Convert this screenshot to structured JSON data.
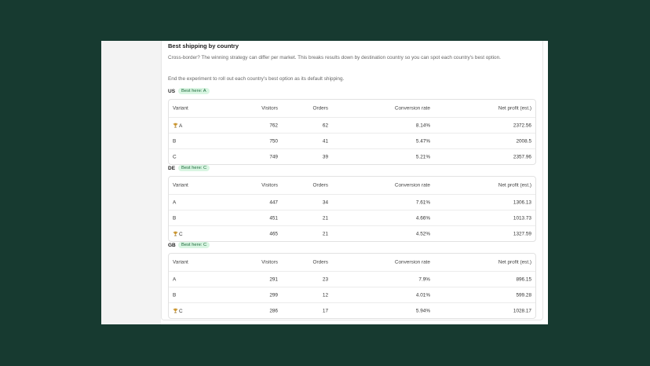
{
  "header": {
    "title": "Best shipping by country"
  },
  "paragraphs": [
    "Cross-border? The winning strategy can differ per market. This breaks results down by destination country so you can spot each country's best option.",
    "End the experiment to roll out each country's best option as its default shipping."
  ],
  "columns": [
    "Variant",
    "Visitors",
    "Orders",
    "Conversion rate",
    "Net profit (est.)"
  ],
  "countries": [
    {
      "code": "US",
      "badge": "Best here: A",
      "rows": [
        {
          "variant": "A",
          "winner": true,
          "cells": [
            "762",
            "62",
            "8.14%",
            "2372.56"
          ]
        },
        {
          "variant": "B",
          "winner": false,
          "cells": [
            "750",
            "41",
            "5.47%",
            "2008.5"
          ]
        },
        {
          "variant": "C",
          "winner": false,
          "cells": [
            "749",
            "39",
            "5.21%",
            "2357.96"
          ]
        }
      ]
    },
    {
      "code": "DE",
      "badge": "Best here: C",
      "rows": [
        {
          "variant": "A",
          "winner": false,
          "cells": [
            "447",
            "34",
            "7.61%",
            "1306.13"
          ]
        },
        {
          "variant": "B",
          "winner": false,
          "cells": [
            "451",
            "21",
            "4.66%",
            "1013.73"
          ]
        },
        {
          "variant": "C",
          "winner": true,
          "cells": [
            "465",
            "21",
            "4.52%",
            "1327.59"
          ]
        }
      ]
    },
    {
      "code": "GB",
      "badge": "Best here: C",
      "rows": [
        {
          "variant": "A",
          "winner": false,
          "cells": [
            "291",
            "23",
            "7.9%",
            "896.15"
          ]
        },
        {
          "variant": "B",
          "winner": false,
          "cells": [
            "299",
            "12",
            "4.01%",
            "599.28"
          ]
        },
        {
          "variant": "C",
          "winner": true,
          "cells": [
            "286",
            "17",
            "5.94%",
            "1028.17"
          ]
        }
      ]
    }
  ]
}
